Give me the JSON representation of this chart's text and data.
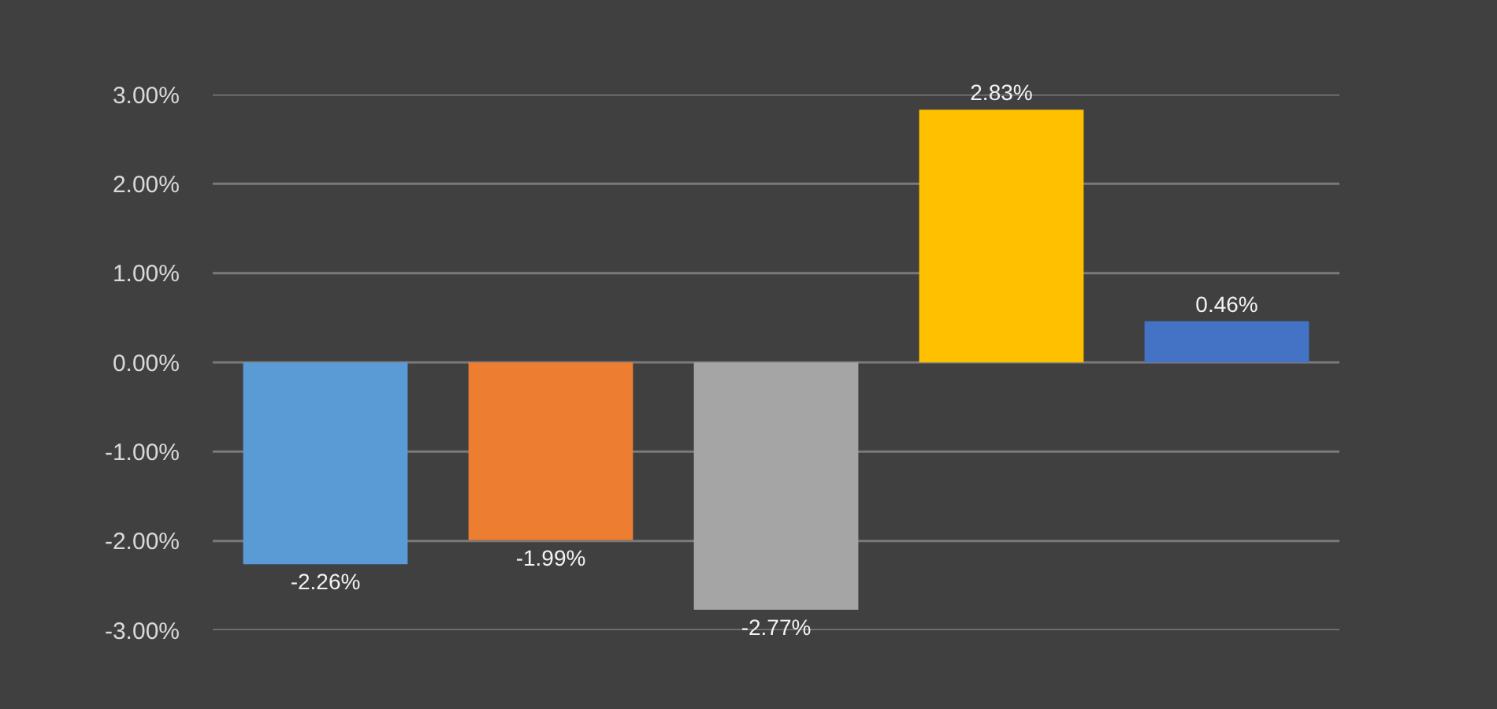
{
  "chart_data": {
    "type": "bar",
    "categories": [
      null,
      null,
      null,
      null,
      null
    ],
    "values": [
      -2.26,
      -1.99,
      -2.77,
      2.83,
      0.46
    ],
    "colors": [
      "#5b9bd5",
      "#ed7d31",
      "#a5a5a5",
      "#ffc000",
      "#4472c4"
    ],
    "value_labels": [
      "-2.26%",
      "-1.99%",
      "-2.77%",
      "2.83%",
      "0.46%"
    ],
    "ylim": [
      -3,
      3
    ],
    "yticks": [
      {
        "value": -3,
        "label": "-3.00%"
      },
      {
        "value": -2,
        "label": "-2.00%"
      },
      {
        "value": -1,
        "label": "-1.00%"
      },
      {
        "value": 0,
        "label": "0.00%"
      },
      {
        "value": 1,
        "label": "1.00%"
      },
      {
        "value": 2,
        "label": "2.00%"
      },
      {
        "value": 3,
        "label": "3.00%"
      }
    ],
    "grid": "y",
    "tick_labels": "y"
  }
}
